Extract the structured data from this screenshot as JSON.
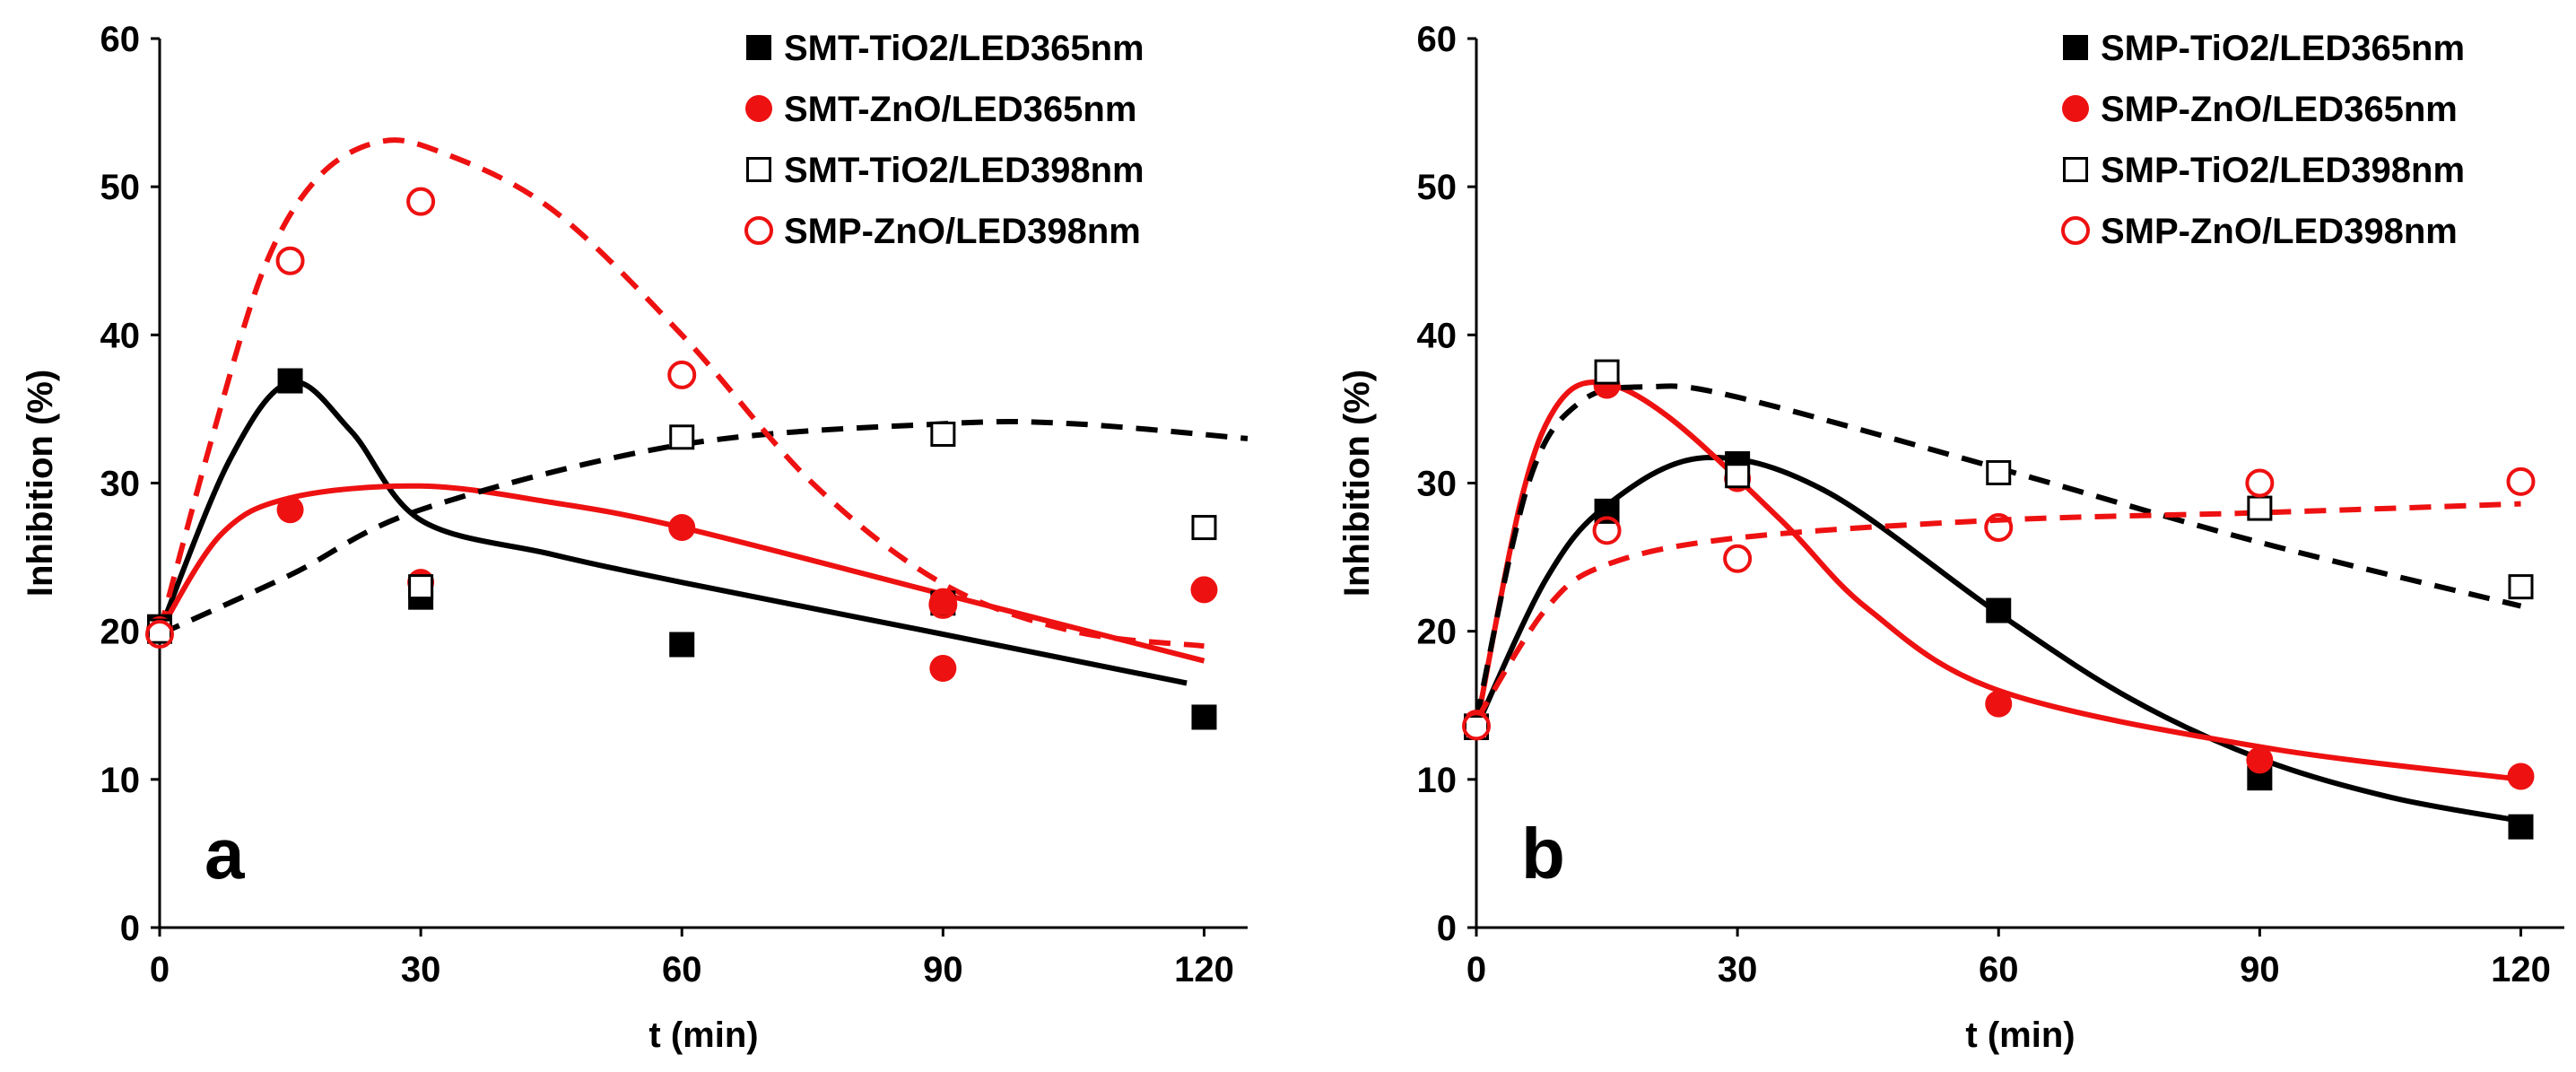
{
  "chart_data": [
    {
      "type": "scatter",
      "panel_label": "a",
      "xlabel": "t (min)",
      "ylabel": "Inhibition (%)",
      "xlim": [
        0,
        125
      ],
      "ylim": [
        0,
        60
      ],
      "xticks": [
        0,
        30,
        60,
        90,
        120
      ],
      "yticks": [
        0,
        10,
        20,
        30,
        40,
        50,
        60
      ],
      "legend_position": "top-right",
      "series": [
        {
          "name": "SMT-TiO2/LED365nm",
          "color": "#000000",
          "marker": "square-filled",
          "line_style": "solid",
          "points": [
            [
              0,
              20.3
            ],
            [
              15,
              36.9
            ],
            [
              30,
              22.3
            ],
            [
              60,
              19.1
            ],
            [
              90,
              21.9
            ],
            [
              120,
              14.2
            ]
          ],
          "fit": [
            [
              0,
              20
            ],
            [
              8,
              31.5
            ],
            [
              15,
              36.8
            ],
            [
              22,
              33.5
            ],
            [
              30,
              27.5
            ],
            [
              45,
              25.2
            ],
            [
              60,
              23.3
            ],
            [
              90,
              19.8
            ],
            [
              118,
              16.5
            ]
          ]
        },
        {
          "name": "SMT-ZnO/LED365nm",
          "color": "#ee1111",
          "marker": "circle-filled",
          "line_style": "solid",
          "points": [
            [
              0,
              20.1
            ],
            [
              15,
              28.2
            ],
            [
              30,
              23.3
            ],
            [
              60,
              27.0
            ],
            [
              90,
              17.5
            ],
            [
              90,
              22.0
            ],
            [
              120,
              22.8
            ]
          ],
          "fit": [
            [
              0,
              20
            ],
            [
              7,
              26.5
            ],
            [
              15,
              29.0
            ],
            [
              30,
              29.8
            ],
            [
              45,
              28.7
            ],
            [
              60,
              27.0
            ],
            [
              90,
              22.5
            ],
            [
              120,
              18.0
            ]
          ]
        },
        {
          "name": "SMT-TiO2/LED398nm",
          "color": "#000000",
          "marker": "square-open",
          "line_style": "dashed",
          "points": [
            [
              0,
              20.0
            ],
            [
              30,
              23.0
            ],
            [
              60,
              33.1
            ],
            [
              90,
              33.3
            ],
            [
              120,
              27.0
            ]
          ],
          "fit": [
            [
              0,
              19.8
            ],
            [
              15,
              23.8
            ],
            [
              30,
              28.2
            ],
            [
              60,
              32.6
            ],
            [
              90,
              34.0
            ],
            [
              105,
              34.0
            ],
            [
              125,
              33.0
            ]
          ]
        },
        {
          "name": "SMP-ZnO/LED398nm",
          "color": "#ee1111",
          "marker": "circle-open",
          "line_style": "dashed",
          "points": [
            [
              0,
              19.8
            ],
            [
              15,
              45.0
            ],
            [
              30,
              49.0
            ],
            [
              60,
              37.3
            ],
            [
              90,
              21.8
            ]
          ],
          "fit": [
            [
              0,
              20
            ],
            [
              6,
              33
            ],
            [
              12,
              44.5
            ],
            [
              18,
              50.5
            ],
            [
              25,
              53.0
            ],
            [
              32,
              52.4
            ],
            [
              45,
              48.5
            ],
            [
              60,
              40.0
            ],
            [
              75,
              30.0
            ],
            [
              90,
              23.2
            ],
            [
              105,
              20.0
            ],
            [
              120,
              19.0
            ]
          ]
        }
      ]
    },
    {
      "type": "scatter",
      "panel_label": "b",
      "xlabel": "t (min)",
      "ylabel": "Inhibition (%)",
      "xlim": [
        0,
        125
      ],
      "ylim": [
        0,
        60
      ],
      "xticks": [
        0,
        30,
        60,
        90,
        120
      ],
      "yticks": [
        0,
        10,
        20,
        30,
        40,
        50,
        60
      ],
      "legend_position": "top-right",
      "series": [
        {
          "name": "SMP-TiO2/LED365nm",
          "color": "#000000",
          "marker": "square-filled",
          "line_style": "solid",
          "points": [
            [
              0,
              13.6
            ],
            [
              15,
              28.1
            ],
            [
              30,
              31.3
            ],
            [
              60,
              21.4
            ],
            [
              90,
              10.1
            ],
            [
              120,
              6.8
            ]
          ],
          "fit": [
            [
              0,
              13.5
            ],
            [
              8,
              23.5
            ],
            [
              15,
              28.5
            ],
            [
              26,
              31.7
            ],
            [
              40,
              29.5
            ],
            [
              60,
              21.2
            ],
            [
              75,
              15.5
            ],
            [
              90,
              11.4
            ],
            [
              105,
              8.8
            ],
            [
              120,
              7.2
            ]
          ]
        },
        {
          "name": "SMP-ZnO/LED365nm",
          "color": "#ee1111",
          "marker": "circle-filled",
          "line_style": "solid",
          "points": [
            [
              0,
              13.8
            ],
            [
              15,
              36.6
            ],
            [
              30,
              30.3
            ],
            [
              60,
              15.1
            ],
            [
              90,
              11.3
            ],
            [
              120,
              10.2
            ]
          ],
          "fit": [
            [
              0,
              13.5
            ],
            [
              5,
              28.5
            ],
            [
              9,
              35.0
            ],
            [
              14,
              36.8
            ],
            [
              22,
              34.5
            ],
            [
              35,
              27.5
            ],
            [
              45,
              21.5
            ],
            [
              60,
              16.0
            ],
            [
              90,
              12.2
            ],
            [
              120,
              10.0
            ]
          ]
        },
        {
          "name": "SMP-TiO2/LED398nm",
          "color": "#000000",
          "marker": "square-open",
          "line_style": "dashed",
          "points": [
            [
              0,
              13.5
            ],
            [
              15,
              37.5
            ],
            [
              30,
              30.5
            ],
            [
              60,
              30.7
            ],
            [
              90,
              28.3
            ],
            [
              120,
              23.0
            ]
          ],
          "fit": [
            [
              0,
              14
            ],
            [
              6,
              30
            ],
            [
              12,
              35.5
            ],
            [
              20,
              36.5
            ],
            [
              30,
              35.8
            ],
            [
              60,
              31.0
            ],
            [
              90,
              26.0
            ],
            [
              120,
              21.7
            ]
          ]
        },
        {
          "name": "SMP-ZnO/LED398nm",
          "color": "#ee1111",
          "marker": "circle-open",
          "line_style": "dashed",
          "points": [
            [
              0,
              13.6
            ],
            [
              15,
              26.8
            ],
            [
              30,
              24.9
            ],
            [
              60,
              27.0
            ],
            [
              90,
              30.0
            ],
            [
              120,
              30.1
            ]
          ],
          "fit": [
            [
              0,
              14
            ],
            [
              8,
              21.5
            ],
            [
              15,
              24.5
            ],
            [
              30,
              26.3
            ],
            [
              60,
              27.5
            ],
            [
              90,
              28.0
            ],
            [
              120,
              28.6
            ]
          ]
        }
      ]
    }
  ]
}
